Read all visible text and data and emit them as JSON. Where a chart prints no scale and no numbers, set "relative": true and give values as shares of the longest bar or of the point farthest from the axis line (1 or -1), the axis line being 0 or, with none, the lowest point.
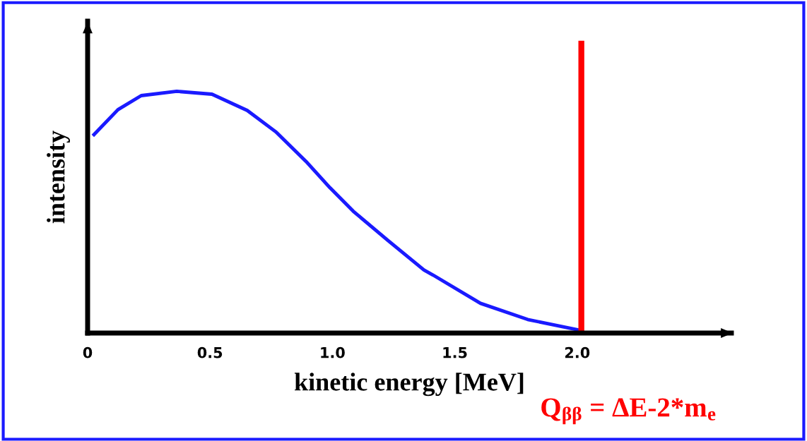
{
  "chart_data": {
    "type": "line",
    "relative": true,
    "xlabel": "kinetic energy [MeV]",
    "ylabel": "intensity",
    "xlim": [
      0,
      2.63
    ],
    "xticks": [
      0,
      0.5,
      {
        "value": 1,
        "label": "1.0"
      },
      1.5,
      {
        "value": 2,
        "label": "2.0"
      }
    ],
    "x": [
      0.026,
      0.124,
      0.219,
      0.364,
      0.508,
      0.652,
      0.768,
      0.892,
      0.99,
      1.085,
      1.229,
      1.374,
      1.411,
      1.605,
      1.798,
      2.009
    ],
    "series": [
      {
        "color": "#1a1aff",
        "values": [
          0.821,
          0.924,
          0.982,
          1.0,
          0.988,
          0.921,
          0.833,
          0.71,
          0.601,
          0.504,
          0.381,
          0.261,
          0.24,
          0.123,
          0.056,
          0.012
        ]
      }
    ],
    "ref_lines": [
      {
        "axis": "x",
        "value": 2.017,
        "label": "Q$_{ββ}$ = ΔE-2*m$_{e}$",
        "color": "#ff0000",
        "line_style": "solid"
      }
    ],
    "grid": false,
    "legend": false,
    "marker": "none",
    "line_style": "solid",
    "tick_labels": "x"
  }
}
